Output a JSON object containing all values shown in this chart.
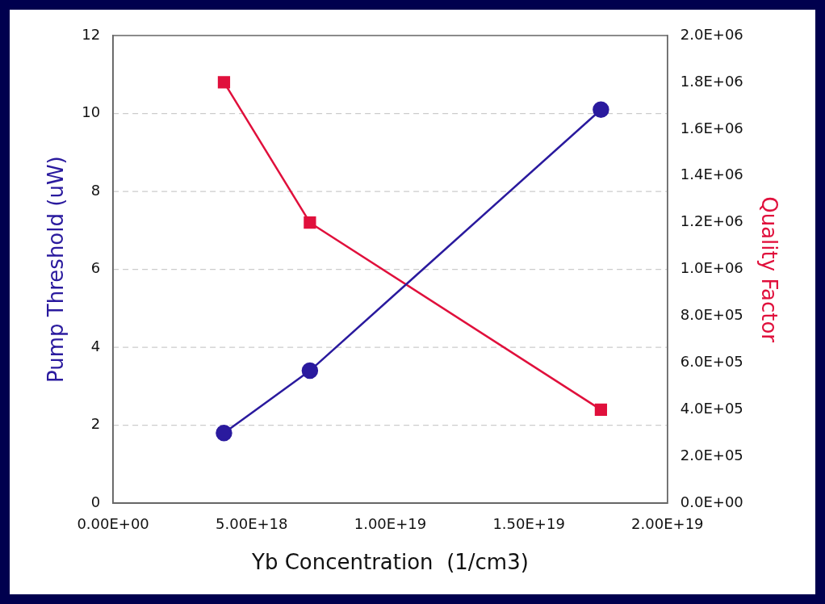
{
  "chart_data": {
    "type": "line",
    "xlabel": "Yb Concentration  (1/cm3)",
    "ylabel": "Pump Threshold (uW)",
    "y2label": "Quality Factor",
    "series": [
      {
        "color": "#2a1a9e",
        "x": [
          4e+18,
          7.1e+18,
          1.76e+19
        ],
        "values": [
          1.8,
          3.4,
          10.1
        ],
        "marker": "circle"
      },
      {
        "color": "#e0103c",
        "x": [
          4e+18,
          7.1e+18,
          1.76e+19
        ],
        "values": [
          1800000.0,
          1200000.0,
          400000.0
        ],
        "marker": "square",
        "axis": "y2"
      }
    ],
    "xlim": [
      0,
      2e+19
    ],
    "xticks": [
      {
        "value": 0,
        "label": "0.00E+00"
      },
      {
        "value": 5e+18,
        "label": "5.00E+18"
      },
      {
        "value": 1e+19,
        "label": "1.00E+19"
      },
      {
        "value": 1.5e+19,
        "label": "1.50E+19"
      },
      {
        "value": 2e+19,
        "label": "2.00E+19"
      }
    ],
    "ylim": [
      0,
      12
    ],
    "yticks": [
      0,
      2,
      4,
      6,
      8,
      10,
      12
    ],
    "y2lim": [
      0,
      2000000.0
    ],
    "y2ticks": [
      {
        "value": 0,
        "label": "0.0E+00"
      },
      {
        "value": 200000.0,
        "label": "2.0E+05"
      },
      {
        "value": 400000.0,
        "label": "4.0E+05"
      },
      {
        "value": 600000.0,
        "label": "6.0E+05"
      },
      {
        "value": 800000.0,
        "label": "8.0E+05"
      },
      {
        "value": 1000000.0,
        "label": "1.0E+06"
      },
      {
        "value": 1200000.0,
        "label": "1.2E+06"
      },
      {
        "value": 1400000.0,
        "label": "1.4E+06"
      },
      {
        "value": 1600000.0,
        "label": "1.6E+06"
      },
      {
        "value": 1800000.0,
        "label": "1.8E+06"
      },
      {
        "value": 2000000.0,
        "label": "2.0E+06"
      }
    ],
    "grid": "y",
    "legend": false,
    "line_style": "solid"
  }
}
